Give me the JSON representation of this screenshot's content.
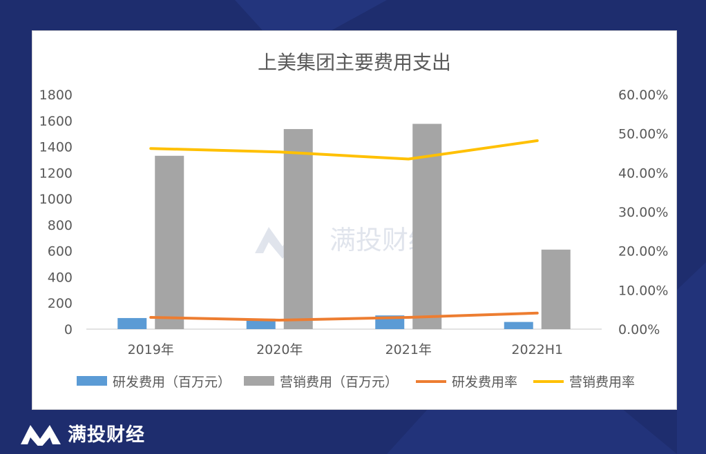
{
  "brand": {
    "name": "满投财经",
    "watermark": "满投财经"
  },
  "colors": {
    "background": "#1e2d6e",
    "rd_expense": "#5b9bd5",
    "marketing_expense": "#a5a5a5",
    "rd_rate": "#ed7d31",
    "marketing_rate": "#ffc000"
  },
  "chart_data": {
    "type": "bar",
    "title": "上美集团主要费用支出",
    "categories": [
      "2019年",
      "2020年",
      "2021年",
      "2022H1"
    ],
    "y_left": {
      "min": 0,
      "max": 1800,
      "ticks": [
        0,
        200,
        400,
        600,
        800,
        1000,
        1200,
        1400,
        1600,
        1800
      ]
    },
    "y_right": {
      "min": 0,
      "max": 0.6,
      "ticks": [
        0,
        0.1,
        0.2,
        0.3,
        0.4,
        0.5,
        0.6
      ],
      "tick_labels": [
        "0.00%",
        "10.00%",
        "20.00%",
        "30.00%",
        "40.00%",
        "50.00%",
        "60.00%"
      ]
    },
    "series": [
      {
        "name": "研发费用（百万元）",
        "type": "bar",
        "axis": "left",
        "values": [
          85,
          80,
          105,
          55
        ]
      },
      {
        "name": "营销费用（百万元）",
        "type": "bar",
        "axis": "left",
        "values": [
          1330,
          1535,
          1575,
          610
        ]
      },
      {
        "name": "研发费用率",
        "type": "line",
        "axis": "right",
        "values": [
          0.03,
          0.023,
          0.03,
          0.041
        ]
      },
      {
        "name": "营销费用率",
        "type": "line",
        "axis": "right",
        "values": [
          0.462,
          0.453,
          0.435,
          0.482
        ]
      }
    ],
    "grid": false,
    "legend_position": "bottom"
  }
}
